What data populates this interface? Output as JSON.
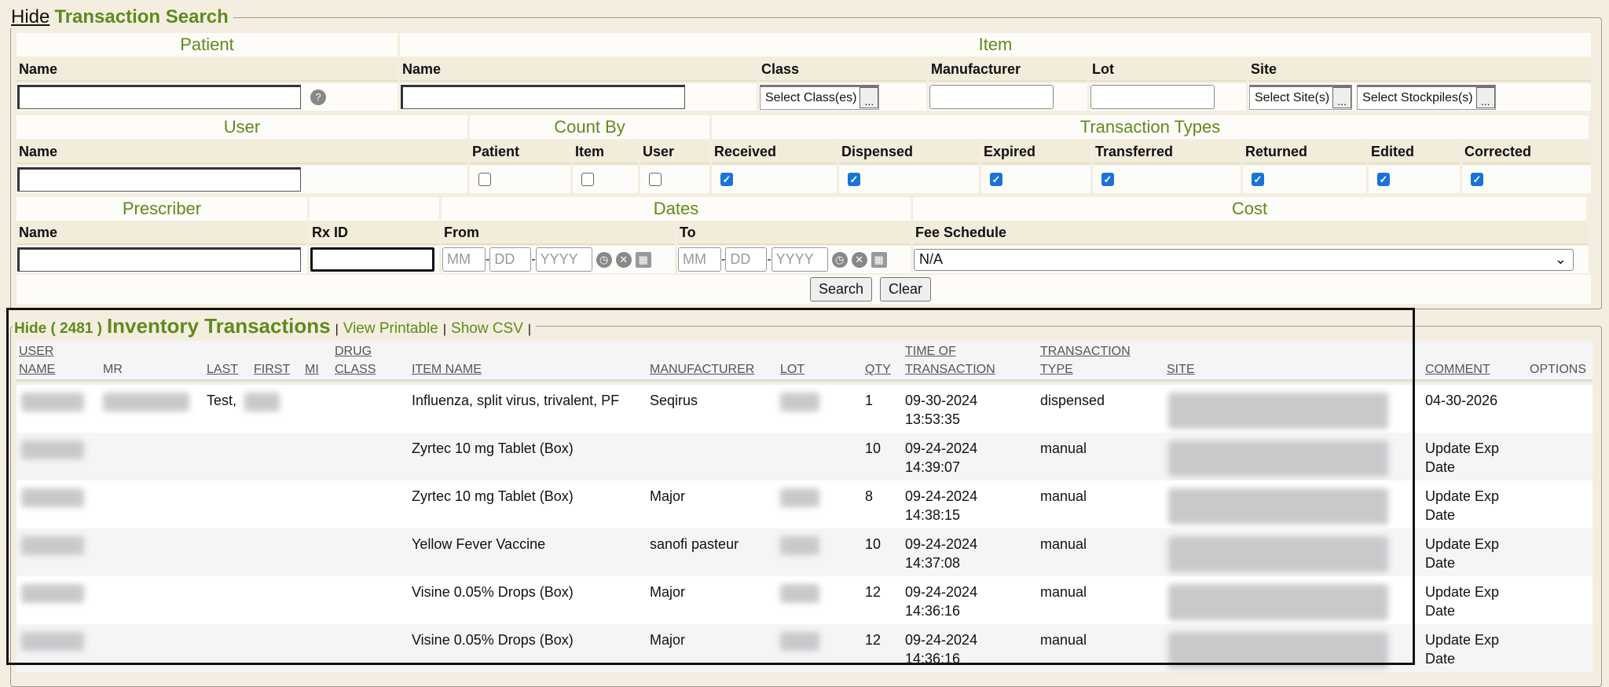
{
  "search": {
    "hide_label": "Hide",
    "title": "Transaction Search",
    "patient": {
      "section": "Patient",
      "name_label": "Name",
      "help_icon": "question-circle-icon"
    },
    "item": {
      "section": "Item",
      "name_label": "Name",
      "class_label": "Class",
      "class_button": "Select Class(es)",
      "manufacturer_label": "Manufacturer",
      "lot_label": "Lot",
      "site_label": "Site",
      "site_button": "Select Site(s)",
      "stockpile_button": "Select Stockpiles(s)",
      "dots": "..."
    },
    "user": {
      "section": "User",
      "name_label": "Name"
    },
    "count_by": {
      "section": "Count By",
      "options": [
        {
          "label": "Patient",
          "checked": false
        },
        {
          "label": "Item",
          "checked": false
        },
        {
          "label": "User",
          "checked": false
        }
      ]
    },
    "transaction_types": {
      "section": "Transaction Types",
      "options": [
        {
          "label": "Received",
          "checked": true
        },
        {
          "label": "Dispensed",
          "checked": true
        },
        {
          "label": "Expired",
          "checked": true
        },
        {
          "label": "Transferred",
          "checked": true
        },
        {
          "label": "Returned",
          "checked": true
        },
        {
          "label": "Edited",
          "checked": true
        },
        {
          "label": "Corrected",
          "checked": true
        }
      ]
    },
    "prescriber": {
      "section": "Prescriber",
      "name_label": "Name"
    },
    "rx": {
      "label": "Rx ID"
    },
    "dates": {
      "section": "Dates",
      "from_label": "From",
      "to_label": "To",
      "mm": "MM",
      "dd": "DD",
      "yyyy": "YYYY"
    },
    "cost": {
      "section": "Cost",
      "fee_label": "Fee Schedule",
      "fee_value": "N/A"
    },
    "search_button": "Search",
    "clear_button": "Clear"
  },
  "inventory": {
    "hide_label": "Hide ( 2481 )",
    "title": "Inventory Transactions",
    "view_printable": "View Printable",
    "show_csv": "Show CSV",
    "sep": "|",
    "columns": {
      "user1": "USER",
      "user2": "NAME",
      "mr": "MR",
      "last": "LAST",
      "first": "FIRST",
      "mi": "MI",
      "drug1": "DRUG",
      "drug2": "CLASS",
      "item": "ITEM NAME",
      "manufacturer": "MANUFACTURER",
      "lot": "LOT",
      "qty": "QTY",
      "time1": "TIME OF",
      "time2": "TRANSACTION",
      "type1": "TRANSACTION",
      "type2": "TYPE",
      "site": "SITE",
      "comment": "COMMENT",
      "options": "OPTIONS"
    },
    "rows": [
      {
        "last": "Test,",
        "item": "Influenza, split virus, trivalent, PF",
        "manufacturer": "Seqirus",
        "qty": "1",
        "date": "09-30-2024",
        "time": "13:53:35",
        "type": "dispensed",
        "comment": "04-30-2026",
        "mr": true,
        "first": true,
        "lot": true
      },
      {
        "last": "",
        "item": "Zyrtec 10 mg Tablet (Box)",
        "manufacturer": "",
        "qty": "10",
        "date": "09-24-2024",
        "time": "14:39:07",
        "type": "manual",
        "comment": "Update Exp Date",
        "mr": false,
        "first": false,
        "lot": false
      },
      {
        "last": "",
        "item": "Zyrtec 10 mg Tablet (Box)",
        "manufacturer": "Major",
        "qty": "8",
        "date": "09-24-2024",
        "time": "14:38:15",
        "type": "manual",
        "comment": "Update Exp Date",
        "mr": false,
        "first": false,
        "lot": true
      },
      {
        "last": "",
        "item": "Yellow Fever Vaccine",
        "manufacturer": "sanofi pasteur",
        "qty": "10",
        "date": "09-24-2024",
        "time": "14:37:08",
        "type": "manual",
        "comment": "Update Exp Date",
        "mr": false,
        "first": false,
        "lot": true
      },
      {
        "last": "",
        "item": "Visine 0.05% Drops (Box)",
        "manufacturer": "Major",
        "qty": "12",
        "date": "09-24-2024",
        "time": "14:36:16",
        "type": "manual",
        "comment": "Update Exp Date",
        "mr": false,
        "first": false,
        "lot": true
      },
      {
        "last": "",
        "item": "Visine 0.05% Drops (Box)",
        "manufacturer": "Major",
        "qty": "12",
        "date": "09-24-2024",
        "time": "14:36:16",
        "type": "manual",
        "comment": "Update Exp Date",
        "mr": false,
        "first": false,
        "lot": true
      }
    ]
  },
  "colors": {
    "accent_green": "#5f8a1c",
    "checkbox_blue": "#1a73d9",
    "background": "#f4eee0"
  }
}
